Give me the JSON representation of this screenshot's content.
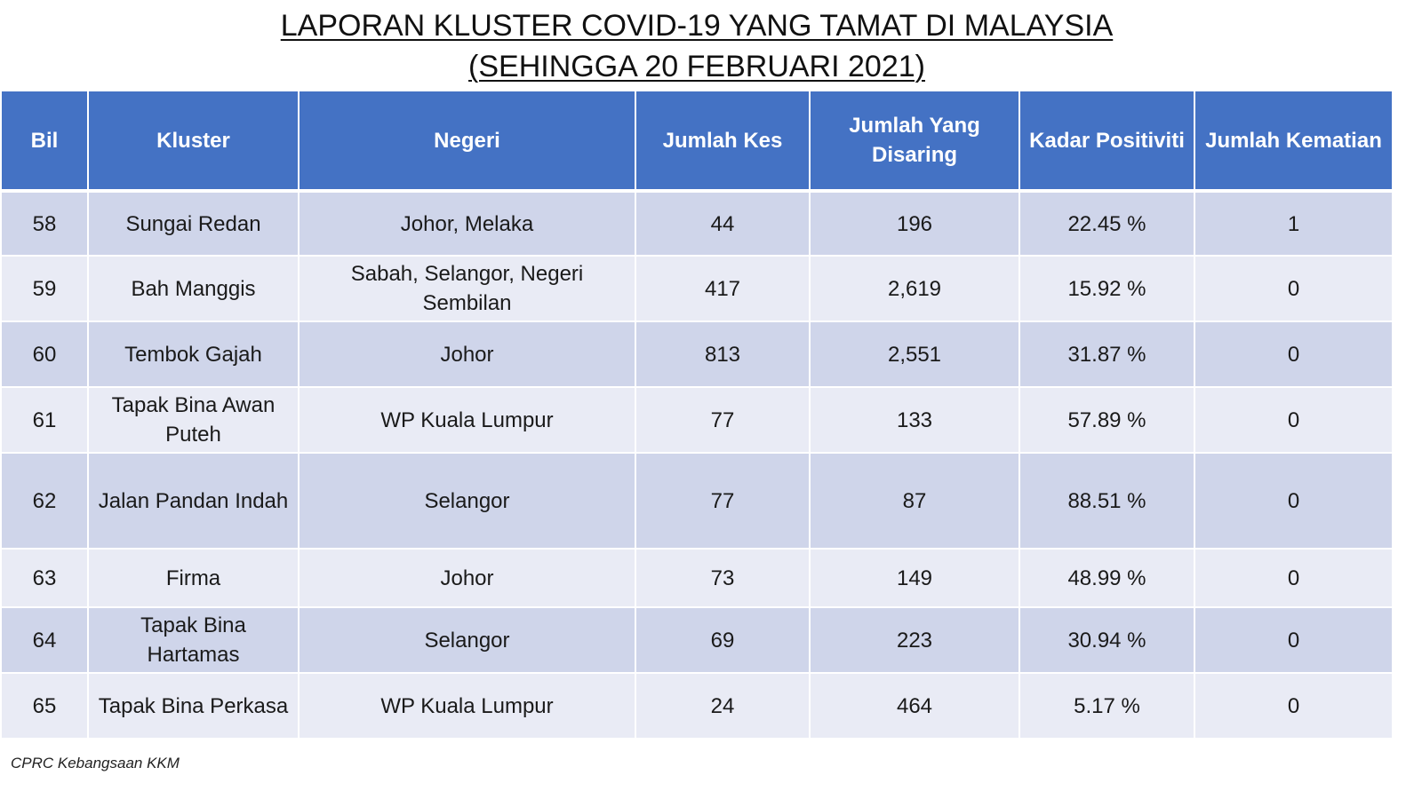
{
  "title": {
    "line1": "LAPORAN KLUSTER COVID-19 YANG TAMAT DI MALAYSIA",
    "line2": "(SEHINGGA  20 FEBRUARI 2021)"
  },
  "table": {
    "headers": {
      "bil": "Bil",
      "kluster": "Kluster",
      "negeri": "Negeri",
      "jumlah_kes": "Jumlah Kes",
      "jumlah_disaring": "Jumlah Yang Disaring",
      "kadar_positiviti": "Kadar Positiviti",
      "jumlah_kematian": "Jumlah Kematian"
    },
    "rows": [
      {
        "bil": "58",
        "kluster": "Sungai Redan",
        "negeri": "Johor, Melaka",
        "kes": "44",
        "disaring": "196",
        "positiviti": "22.45 %",
        "kematian": "1"
      },
      {
        "bil": "59",
        "kluster": "Bah Manggis",
        "negeri": "Sabah, Selangor, Negeri Sembilan",
        "kes": "417",
        "disaring": "2,619",
        "positiviti": "15.92 %",
        "kematian": "0"
      },
      {
        "bil": "60",
        "kluster": "Tembok Gajah",
        "negeri": "Johor",
        "kes": "813",
        "disaring": "2,551",
        "positiviti": "31.87 %",
        "kematian": "0"
      },
      {
        "bil": "61",
        "kluster": "Tapak Bina Awan Puteh",
        "negeri": "WP Kuala Lumpur",
        "kes": "77",
        "disaring": "133",
        "positiviti": "57.89 %",
        "kematian": "0"
      },
      {
        "bil": "62",
        "kluster": "Jalan Pandan Indah",
        "negeri": "Selangor",
        "kes": "77",
        "disaring": "87",
        "positiviti": "88.51 %",
        "kematian": "0"
      },
      {
        "bil": "63",
        "kluster": "Firma",
        "negeri": "Johor",
        "kes": "73",
        "disaring": "149",
        "positiviti": "48.99 %",
        "kematian": "0"
      },
      {
        "bil": "64",
        "kluster": "Tapak Bina Hartamas",
        "negeri": "Selangor",
        "kes": "69",
        "disaring": "223",
        "positiviti": "30.94 %",
        "kematian": "0"
      },
      {
        "bil": "65",
        "kluster": "Tapak Bina Perkasa",
        "negeri": "WP Kuala Lumpur",
        "kes": "24",
        "disaring": "464",
        "positiviti": "5.17 %",
        "kematian": "0"
      }
    ]
  },
  "footer": "CPRC Kebangsaan KKM",
  "colors": {
    "header_bg": "#4472c4",
    "row_odd": "#cfd5ea",
    "row_even": "#e9ebf5"
  }
}
